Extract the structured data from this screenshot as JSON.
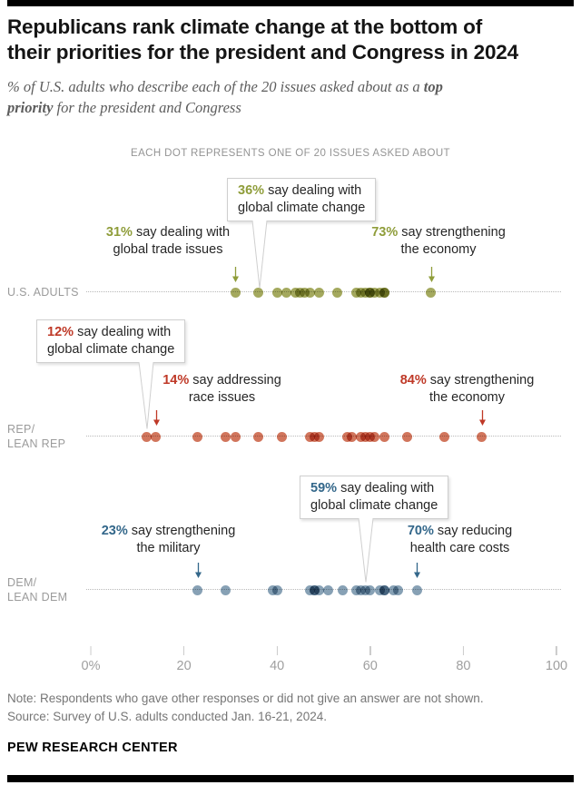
{
  "colors": {
    "us_adults_dot": "#a4a95e",
    "us_adults_text": "#8f9d3a",
    "rep_dot": "#d1755c",
    "rep_text": "#bf3927",
    "dem_dot": "#87a1b5",
    "dem_text": "#33678a",
    "bar_black": "#000000"
  },
  "header": {
    "title_line1": "Republicans rank climate change at the bottom of",
    "title_line2": "their priorities for the president and Congress in 2024",
    "subtitle": {
      "l1_normal": "% of U.S. adults who describe each of the 20 issues asked about as a ",
      "l1_bold": "top",
      "l2_bold": "priority",
      "l2_normal": " for the president and Congress"
    }
  },
  "chart_data": {
    "type": "scatter",
    "caption": "EACH DOT REPRESENTS ONE OF 20 ISSUES ASKED ABOUT",
    "xlim": [
      0,
      100
    ],
    "grid": false,
    "x_ticks": {
      "values": [
        0,
        20,
        40,
        60,
        80,
        100
      ],
      "labels": [
        "0%",
        "20",
        "40",
        "60",
        "80",
        "100"
      ]
    },
    "series": [
      {
        "name": "U.S. ADULTS",
        "key": "us-adults",
        "label_lines": [
          "U.S. ADULTS"
        ],
        "color": "#a4a95e",
        "values": [
          31,
          36,
          40,
          42,
          44,
          45,
          46,
          47,
          49,
          53,
          57,
          58,
          59,
          60,
          60,
          61,
          62,
          63,
          63,
          73
        ]
      },
      {
        "name": "REP/LEAN REP",
        "key": "rep",
        "label_lines": [
          "REP/",
          "LEAN REP"
        ],
        "color": "#d1755c",
        "values": [
          12,
          14,
          23,
          29,
          31,
          36,
          41,
          47,
          48,
          49,
          55,
          56,
          58,
          59,
          60,
          61,
          63,
          68,
          76,
          84
        ]
      },
      {
        "name": "DEM/LEAN DEM",
        "key": "dem",
        "label_lines": [
          "DEM/",
          "LEAN DEM"
        ],
        "color": "#87a1b5",
        "values": [
          23,
          29,
          39,
          40,
          47,
          48,
          48,
          49,
          51,
          54,
          57,
          58,
          59,
          60,
          62,
          63,
          63,
          65,
          66,
          70
        ]
      }
    ],
    "annotations": {
      "us_trade": {
        "series": "U.S. ADULTS",
        "value": 31,
        "pct": "31%",
        "rest_line1": "say dealing with",
        "line2": "global trade issues"
      },
      "us_economy": {
        "series": "U.S. ADULTS",
        "value": 73,
        "pct": "73%",
        "rest_line1": "say strengthening",
        "line2": "the economy"
      },
      "rep_race": {
        "series": "REP/LEAN REP",
        "value": 14,
        "pct": "14%",
        "rest_line1": "say addressing",
        "line2": "race issues"
      },
      "rep_economy": {
        "series": "REP/LEAN REP",
        "value": 84,
        "pct": "84%",
        "rest_line1": "say strengthening",
        "line2": "the economy"
      },
      "dem_military": {
        "series": "DEM/LEAN DEM",
        "value": 23,
        "pct": "23%",
        "rest_line1": "say strengthening",
        "line2": "the military"
      },
      "dem_health": {
        "series": "DEM/LEAN DEM",
        "value": 70,
        "pct": "70%",
        "rest_line1": "say reducing",
        "line2": "health care costs"
      }
    },
    "callouts": {
      "us_climate": {
        "series": "U.S. ADULTS",
        "value": 36,
        "pct": "36%",
        "rest_line1": "say dealing with",
        "line2": "global climate change"
      },
      "rep_climate": {
        "series": "REP/LEAN REP",
        "value": 12,
        "pct": "12%",
        "rest_line1": "say dealing with",
        "line2": "global climate change"
      },
      "dem_climate": {
        "series": "DEM/LEAN DEM",
        "value": 59,
        "pct": "59%",
        "rest_line1": "say dealing with",
        "line2": "global climate change"
      }
    }
  },
  "footer": {
    "note": "Note: Respondents who gave other responses or did not give an answer are not shown.",
    "source": "Source: Survey of U.S. adults conducted Jan. 16-21, 2024.",
    "brand": "PEW RESEARCH CENTER"
  }
}
